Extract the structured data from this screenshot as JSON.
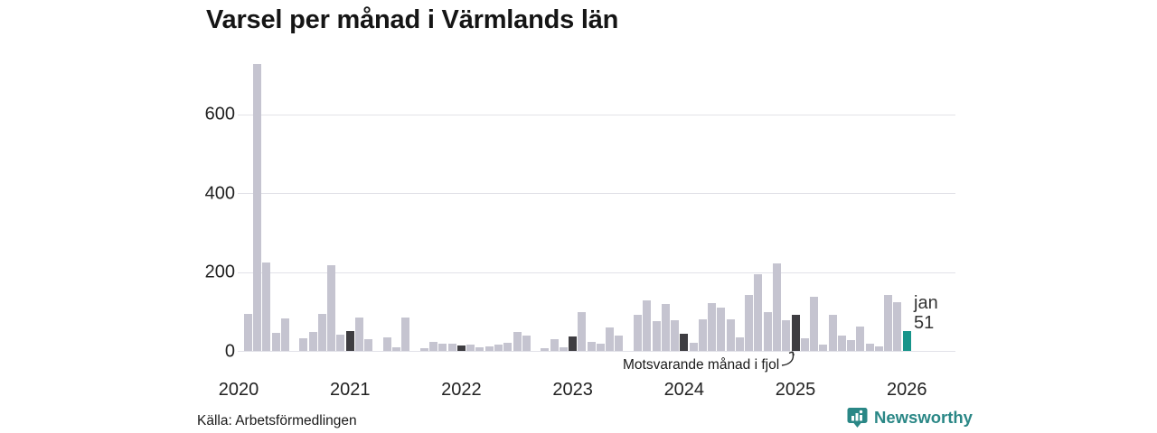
{
  "title": "Varsel per månad i Värmlands län",
  "source": "Källa: Arbetsförmedlingen",
  "branding": {
    "name": "Newsworthy"
  },
  "annotation": {
    "text": "Motsvarande månad i fjol"
  },
  "highlight_label": {
    "month": "jan",
    "value": "51"
  },
  "colors": {
    "bar_default": "#c5c4d0",
    "bar_same_month_last_years": "#3e3d41",
    "bar_highlight": "#17948a",
    "gridline": "#e2e2e8",
    "text": "#1a1a1a",
    "brand_teal": "#2a8786"
  },
  "chart_data": {
    "type": "bar",
    "title": "Varsel per månad i Värmlands län",
    "xlabel": "",
    "ylabel": "",
    "ylim": [
      0,
      750
    ],
    "yticks": [
      0,
      200,
      400,
      600
    ],
    "grid": "horizontal",
    "year_ticks": [
      "2020",
      "2021",
      "2022",
      "2023",
      "2024",
      "2025",
      "2026"
    ],
    "months": [
      "2020-01",
      "2020-02",
      "2020-03",
      "2020-04",
      "2020-05",
      "2020-06",
      "2020-07",
      "2020-08",
      "2020-09",
      "2020-10",
      "2020-11",
      "2020-12",
      "2021-01",
      "2021-02",
      "2021-03",
      "2021-04",
      "2021-05",
      "2021-06",
      "2021-07",
      "2021-08",
      "2021-09",
      "2021-10",
      "2021-11",
      "2021-12",
      "2022-01",
      "2022-02",
      "2022-03",
      "2022-04",
      "2022-05",
      "2022-06",
      "2022-07",
      "2022-08",
      "2022-09",
      "2022-10",
      "2022-11",
      "2022-12",
      "2023-01",
      "2023-02",
      "2023-03",
      "2023-04",
      "2023-05",
      "2023-06",
      "2023-07",
      "2023-08",
      "2023-09",
      "2023-10",
      "2023-11",
      "2023-12",
      "2024-01",
      "2024-02",
      "2024-03",
      "2024-04",
      "2024-05",
      "2024-06",
      "2024-07",
      "2024-08",
      "2024-09",
      "2024-10",
      "2024-11",
      "2024-12",
      "2025-01",
      "2025-02",
      "2025-03",
      "2025-04",
      "2025-05",
      "2025-06",
      "2025-07",
      "2025-08",
      "2025-09",
      "2025-10",
      "2025-11",
      "2025-12",
      "2026-01"
    ],
    "values": [
      0,
      94,
      728,
      225,
      45,
      82,
      0,
      32,
      48,
      94,
      218,
      41,
      50,
      85,
      29,
      0,
      35,
      10,
      85,
      0,
      6,
      24,
      18,
      18,
      14,
      15,
      10,
      12,
      16,
      21,
      48,
      39,
      0,
      6,
      29,
      10,
      37,
      98,
      24,
      18,
      60,
      40,
      0,
      92,
      128,
      75,
      119,
      77,
      44,
      21,
      81,
      122,
      109,
      80,
      34,
      141,
      194,
      99,
      222,
      78,
      91,
      32,
      137,
      17,
      91,
      38,
      28,
      62,
      19,
      11,
      141,
      124,
      51
    ],
    "dark_months": [
      "2021-01",
      "2022-01",
      "2023-01",
      "2024-01",
      "2025-01"
    ],
    "highlight_month": "2026-01",
    "highlight_value": 51,
    "legend": "none"
  }
}
